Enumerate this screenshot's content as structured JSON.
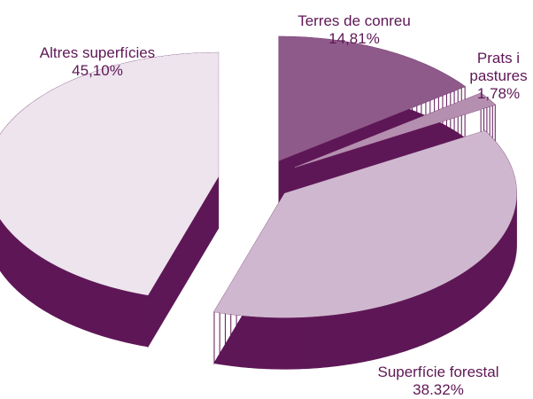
{
  "chart_data": {
    "type": "pie",
    "categories": [
      "Terres de conreu",
      "Prats i pastures",
      "Superfície forestal",
      "Altres superfícies"
    ],
    "values": [
      14.81,
      1.78,
      38.32,
      45.1
    ],
    "value_labels": [
      "14,81%",
      "1,78%",
      "38.32%",
      "45,10%"
    ],
    "colors": [
      "#8e5a8a",
      "#b58fb0",
      "#cfb8cf",
      "#ede4ed"
    ],
    "side_color": "#5e1756"
  }
}
